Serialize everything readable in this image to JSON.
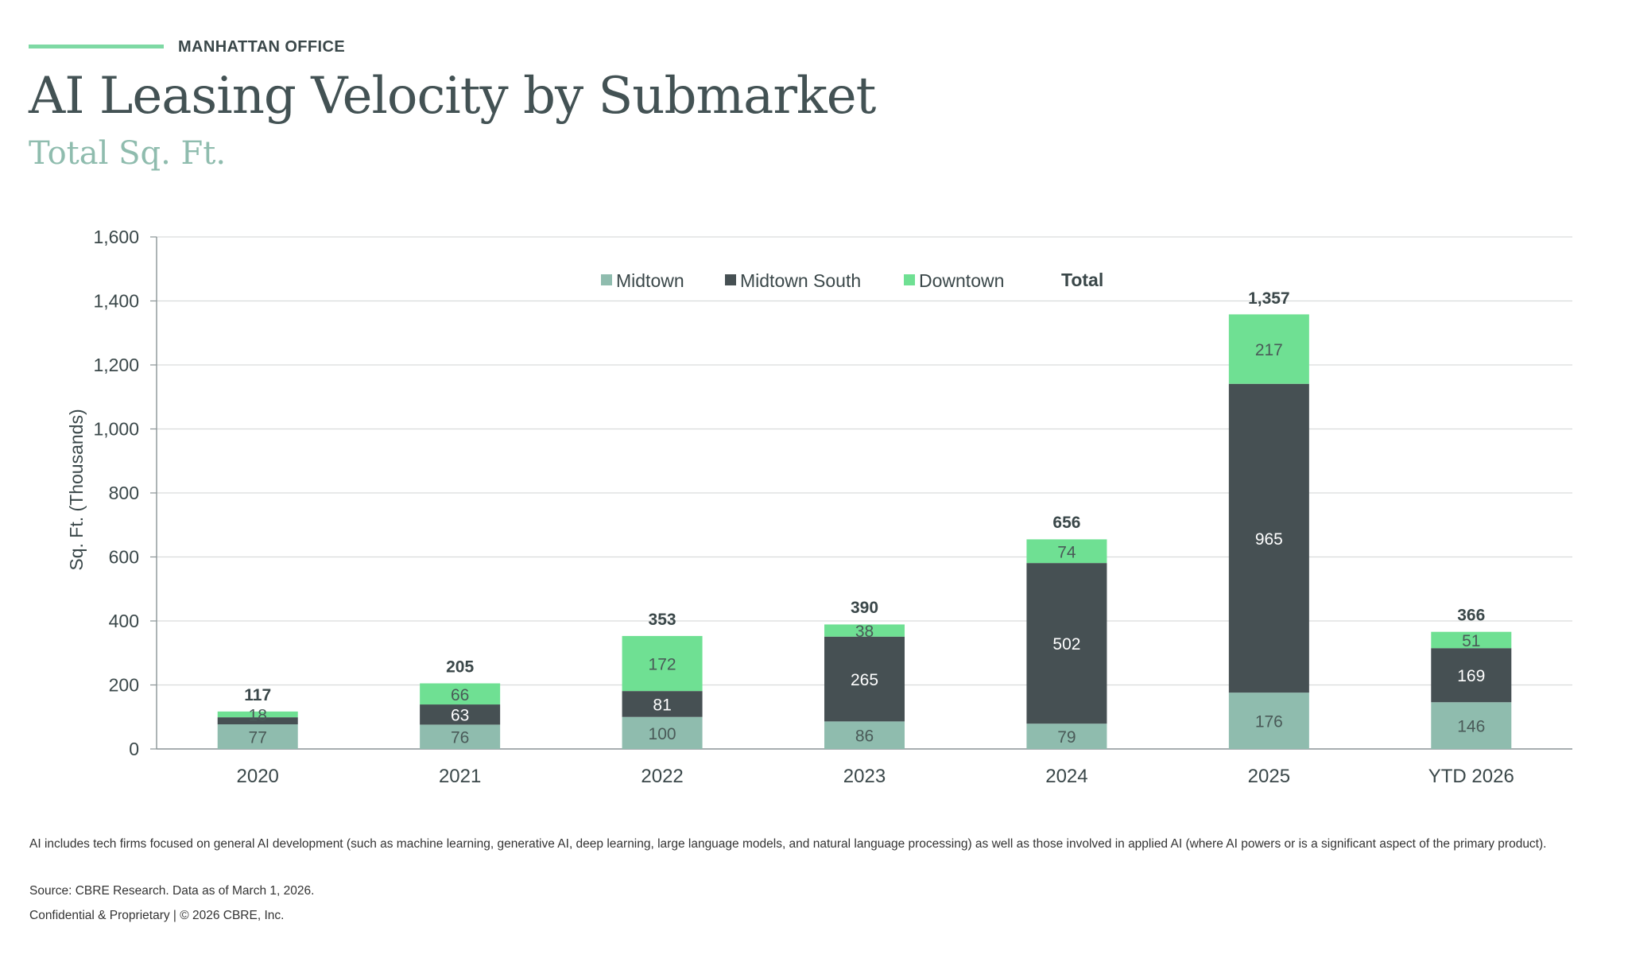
{
  "header": {
    "eyebrow": "MANHATTAN OFFICE",
    "title": "AI Leasing Velocity by Submarket",
    "subtitle": "Total Sq. Ft."
  },
  "colors": {
    "Midtown": "#8FBCAE",
    "Midtown South": "#465053",
    "Downtown": "#6FE093",
    "accent": "#7ED9A4",
    "text": "#435254"
  },
  "chart_data": {
    "type": "bar",
    "stacked": true,
    "categories": [
      "2020",
      "2021",
      "2022",
      "2023",
      "2024",
      "2025",
      "YTD 2026"
    ],
    "series": [
      {
        "name": "Midtown",
        "values": [
          77,
          76,
          100,
          86,
          79,
          176,
          146
        ]
      },
      {
        "name": "Midtown South",
        "values": [
          22,
          63,
          81,
          265,
          502,
          965,
          169
        ]
      },
      {
        "name": "Downtown",
        "values": [
          18,
          66,
          172,
          38,
          74,
          217,
          51
        ]
      }
    ],
    "segment_labels": {
      "Midtown": [
        "77",
        "76",
        "100",
        "86",
        "79",
        "176",
        "146"
      ],
      "Midtown South": [
        "",
        "63",
        "81",
        "265",
        "502",
        "965",
        "169"
      ],
      "Downtown": [
        "18",
        "66",
        "172",
        "38",
        "74",
        "217",
        "51"
      ]
    },
    "totals": [
      117,
      205,
      353,
      390,
      656,
      1357,
      366
    ],
    "total_labels": [
      "117",
      "205",
      "353",
      "390",
      "656",
      "1,357",
      "366"
    ],
    "total_legend_label": "Total",
    "ylabel": "Sq. Ft. (Thousands)",
    "xlabel": "",
    "ylim": [
      0,
      1600
    ],
    "yticks": [
      0,
      200,
      400,
      600,
      800,
      1000,
      1200,
      1400,
      1600
    ],
    "ytick_labels": [
      "0",
      "200",
      "400",
      "600",
      "800",
      "1,000",
      "1,200",
      "1,400",
      "1,600"
    ],
    "grid": true,
    "legend_position": "top-center"
  },
  "footer": {
    "note": "AI includes tech firms focused on general AI development (such as machine learning, generative AI, deep learning, large language models, and natural language processing) as well as those involved in applied AI (where AI powers or is a significant aspect of the primary product).",
    "source": "Source: CBRE Research. Data as of March 1, 2026.",
    "copyright": "Confidential & Proprietary | © 2026 CBRE, Inc."
  }
}
